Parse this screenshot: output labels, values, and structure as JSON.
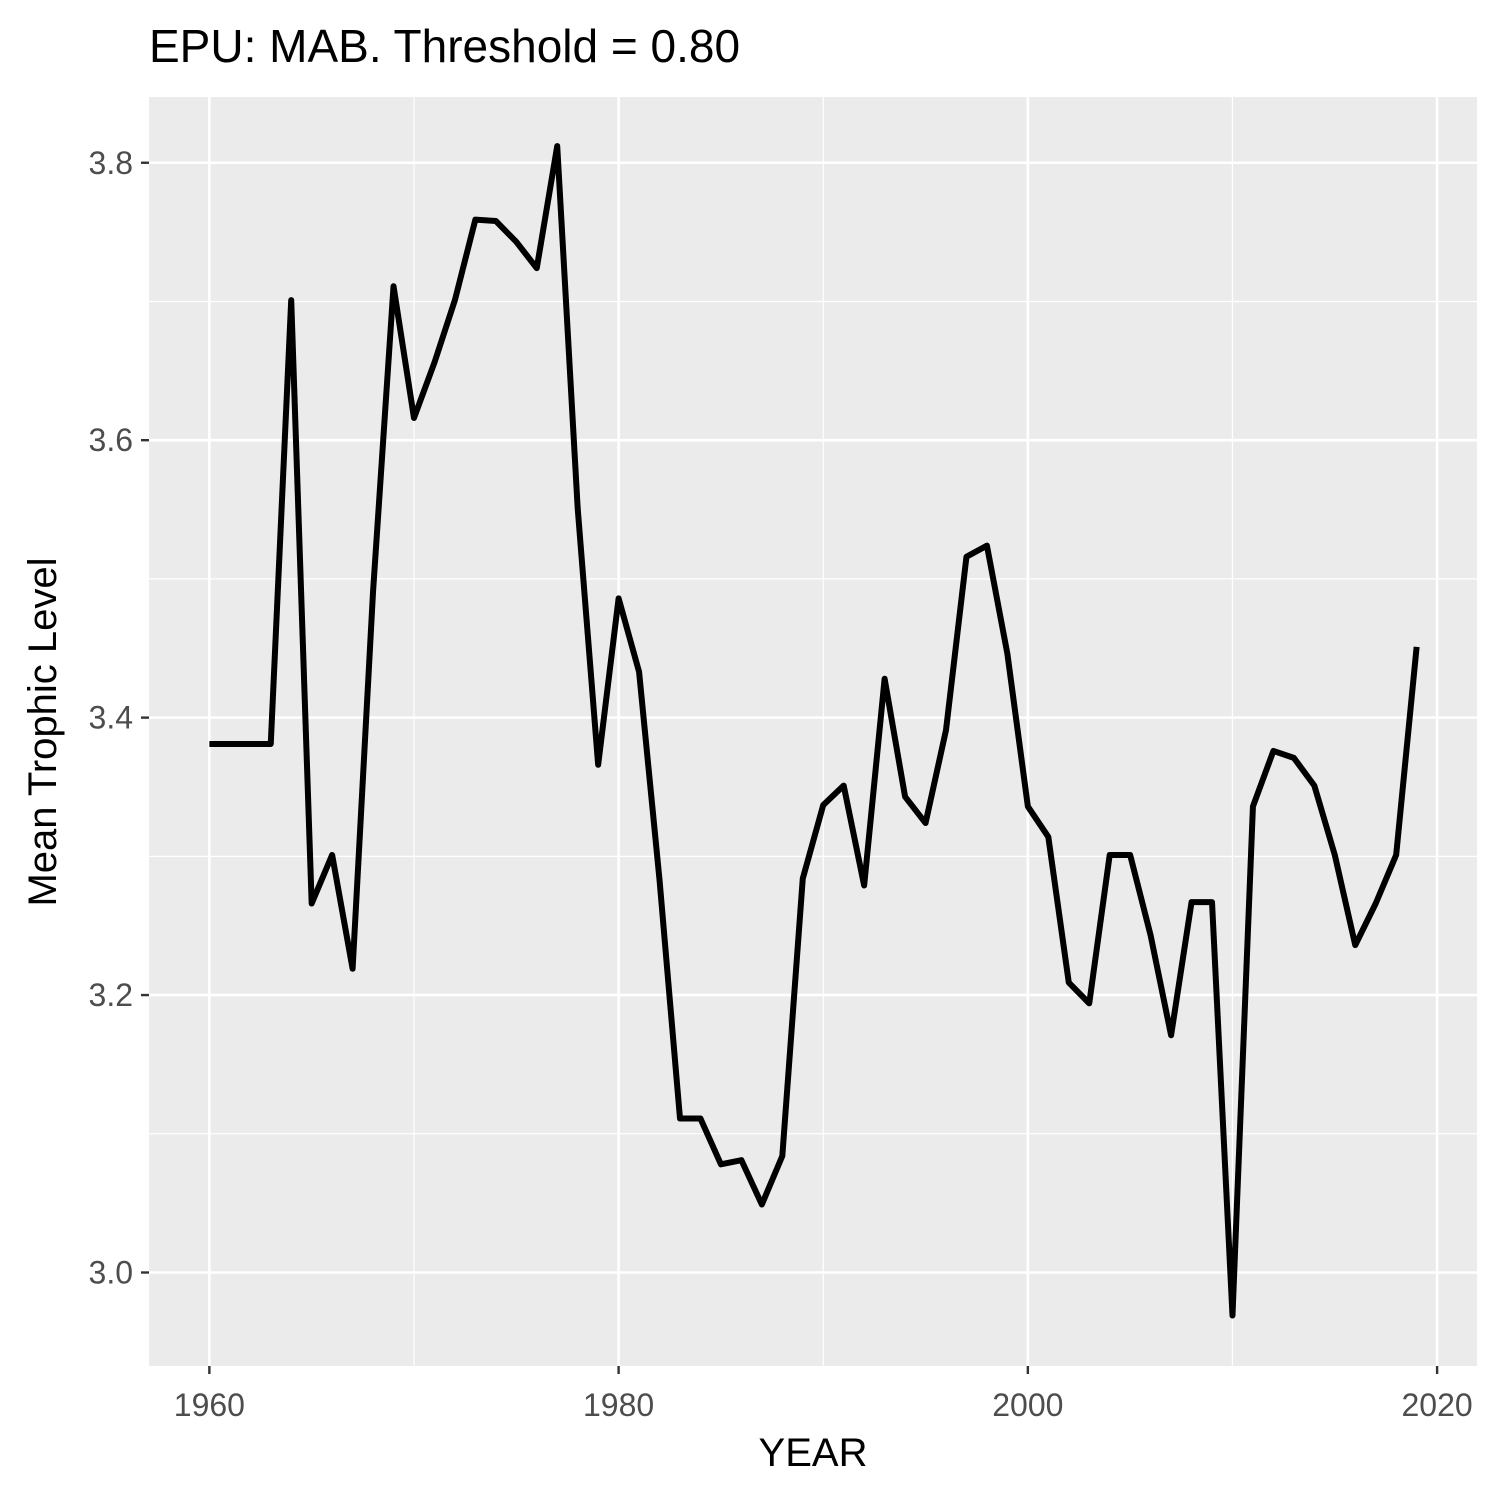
{
  "chart_data": {
    "type": "line",
    "title": "EPU: MAB. Threshold = 0.80",
    "xlabel": "YEAR",
    "ylabel": "Mean Trophic Level",
    "xlim": [
      1957.05,
      2021.95
    ],
    "ylim": [
      2.9326,
      3.8474
    ],
    "x_ticks": [
      1960,
      1980,
      2000,
      2020
    ],
    "y_ticks": [
      3.0,
      3.2,
      3.4,
      3.6,
      3.8
    ],
    "x_tick_labels": [
      "1960",
      "1980",
      "2000",
      "2020"
    ],
    "y_tick_labels": [
      "3.0",
      "3.2",
      "3.4",
      "3.6",
      "3.8"
    ],
    "grid": true,
    "colors": {
      "panel_background": "#ebebeb",
      "grid": "#ffffff",
      "line": "#000000",
      "tick_text": "#4d4d4d"
    },
    "series": [
      {
        "x": [
          1960,
          1961,
          1962,
          1963,
          1964,
          1965,
          1966,
          1967,
          1968,
          1969,
          1970,
          1971,
          1972,
          1973,
          1974,
          1975,
          1976,
          1977,
          1978,
          1979,
          1980,
          1981,
          1982,
          1983,
          1984,
          1985,
          1986,
          1987,
          1988,
          1989,
          1990,
          1991,
          1992,
          1993,
          1994,
          1995,
          1996,
          1997,
          1998,
          1999,
          2000,
          2001,
          2002,
          2003,
          2004,
          2005,
          2006,
          2007,
          2008,
          2009,
          2010,
          2011,
          2012,
          2013,
          2014,
          2015,
          2016,
          2017,
          2018,
          2019
        ],
        "values": [
          3.381,
          3.381,
          3.381,
          3.381,
          3.701,
          3.266,
          3.301,
          3.219,
          3.491,
          3.711,
          3.616,
          3.656,
          3.701,
          3.759,
          3.758,
          3.743,
          3.724,
          3.812,
          3.551,
          3.366,
          3.486,
          3.433,
          3.283,
          3.111,
          3.111,
          3.078,
          3.081,
          3.049,
          3.084,
          3.284,
          3.337,
          3.351,
          3.279,
          3.428,
          3.343,
          3.324,
          3.391,
          3.516,
          3.524,
          3.446,
          3.336,
          3.314,
          3.209,
          3.194,
          3.301,
          3.301,
          3.243,
          3.171,
          3.267,
          3.267,
          2.969,
          3.336,
          3.376,
          3.371,
          3.351,
          3.301,
          3.236,
          3.266,
          3.301,
          3.451
        ]
      }
    ]
  }
}
